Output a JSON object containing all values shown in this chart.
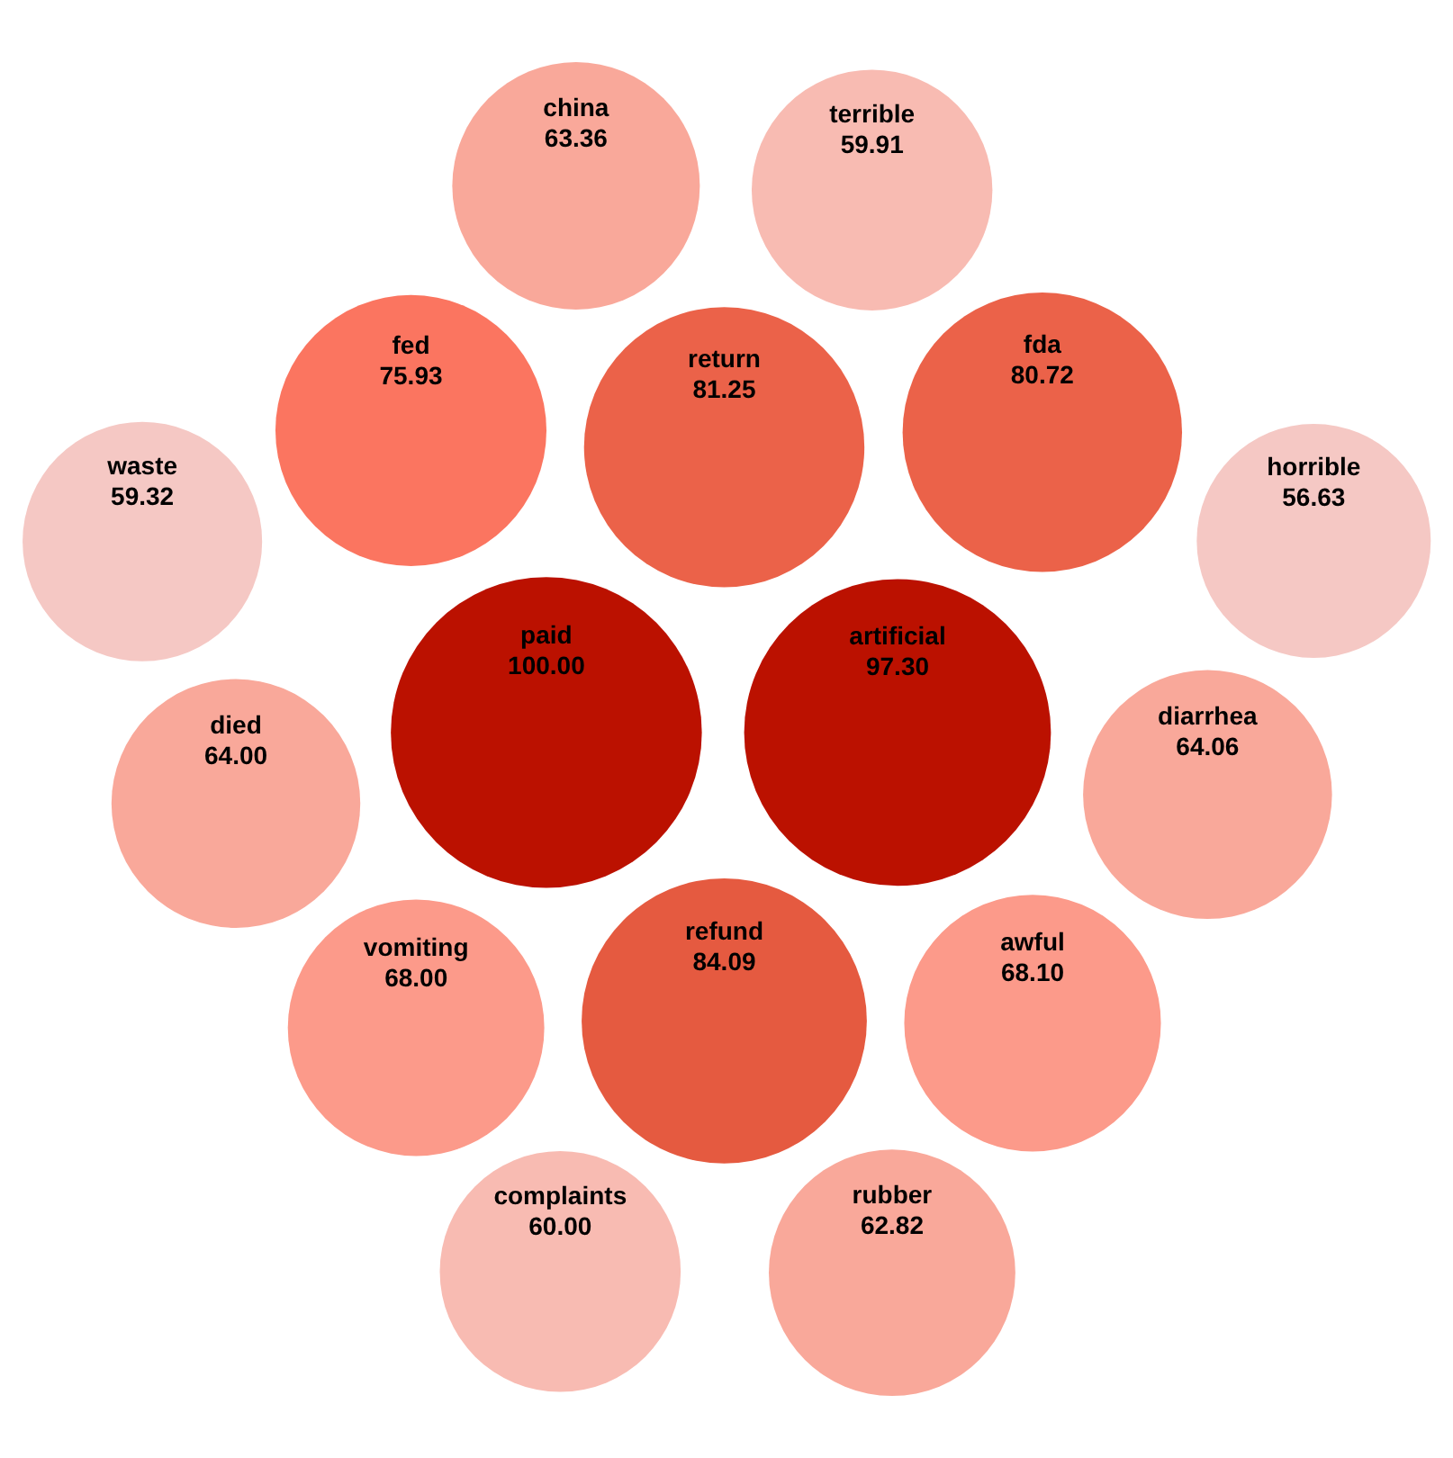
{
  "chart_data": {
    "type": "other",
    "categories": [
      "paid",
      "artificial",
      "refund",
      "return",
      "fda",
      "fed",
      "awful",
      "vomiting",
      "diarrhea",
      "died",
      "china",
      "rubber",
      "complaints",
      "terrible",
      "waste",
      "horrible"
    ],
    "values": [
      100.0,
      97.3,
      84.09,
      81.25,
      80.72,
      75.93,
      68.1,
      68.0,
      64.06,
      64.0,
      63.36,
      62.82,
      60.0,
      59.91,
      59.32,
      56.63
    ],
    "value_labels": [
      "100.00",
      "97.30",
      "84.09",
      "81.25",
      "80.72",
      "75.93",
      "68.10",
      "68.00",
      "64.06",
      "64.00",
      "63.36",
      "62.82",
      "60.00",
      "59.91",
      "59.32",
      "56.63"
    ],
    "colors": [
      "#bb1100",
      "#bb1100",
      "#e55a40",
      "#eb6249",
      "#eb6249",
      "#fb7560",
      "#fc9a8a",
      "#fc9a8a",
      "#f9a89a",
      "#f9a89a",
      "#f9a89a",
      "#f9a89a",
      "#f8bbb2",
      "#f8bbb2",
      "#f5c8c4",
      "#f5c8c4"
    ]
  }
}
